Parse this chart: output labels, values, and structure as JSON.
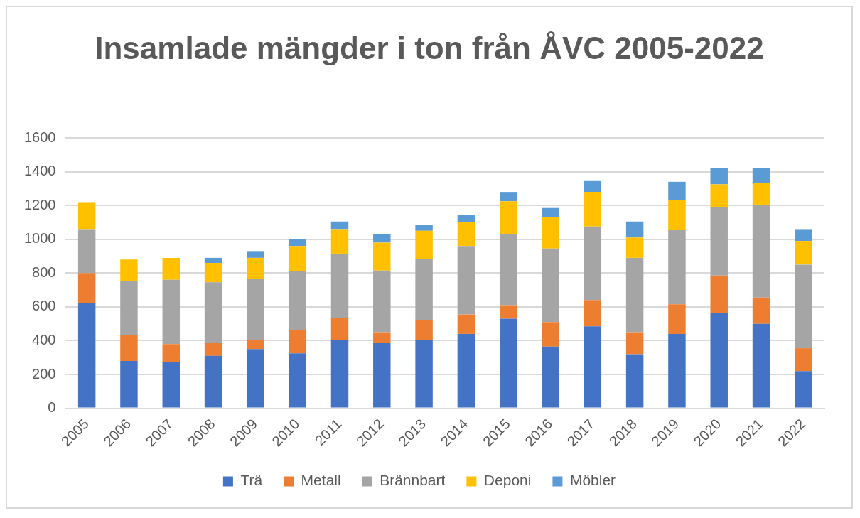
{
  "chart_data": {
    "type": "bar",
    "title": "Insamlade mängder i ton från ÅVC 2005-2022",
    "stacked": true,
    "categories": [
      "2005",
      "2006",
      "2007",
      "2008",
      "2009",
      "2010",
      "2011",
      "2012",
      "2013",
      "2014",
      "2015",
      "2016",
      "2017",
      "2018",
      "2019",
      "2020",
      "2021",
      "2022"
    ],
    "series": [
      {
        "name": "Trä",
        "color": "#4472c4",
        "values": [
          625,
          280,
          275,
          310,
          350,
          325,
          405,
          385,
          405,
          440,
          530,
          365,
          485,
          320,
          440,
          565,
          500,
          220
        ]
      },
      {
        "name": "Metall",
        "color": "#ed7d31",
        "values": [
          175,
          155,
          105,
          75,
          55,
          140,
          130,
          65,
          115,
          115,
          80,
          145,
          155,
          130,
          175,
          220,
          155,
          135
        ]
      },
      {
        "name": "Brännbart",
        "color": "#a5a5a5",
        "values": [
          260,
          320,
          380,
          360,
          360,
          345,
          380,
          365,
          365,
          405,
          420,
          435,
          435,
          440,
          440,
          405,
          550,
          495
        ]
      },
      {
        "name": "Deponi",
        "color": "#ffc000",
        "values": [
          160,
          125,
          130,
          115,
          125,
          150,
          145,
          165,
          165,
          140,
          195,
          185,
          205,
          120,
          175,
          135,
          130,
          140
        ]
      },
      {
        "name": "Möbler",
        "color": "#5b9bd5",
        "values": [
          0,
          0,
          0,
          30,
          40,
          40,
          45,
          50,
          35,
          45,
          55,
          55,
          65,
          95,
          110,
          95,
          85,
          70
        ]
      }
    ],
    "ylim": [
      0,
      1600
    ],
    "yticks": [
      0,
      200,
      400,
      600,
      800,
      1000,
      1200,
      1400,
      1600
    ],
    "grid": "y",
    "legend": "bottom"
  }
}
